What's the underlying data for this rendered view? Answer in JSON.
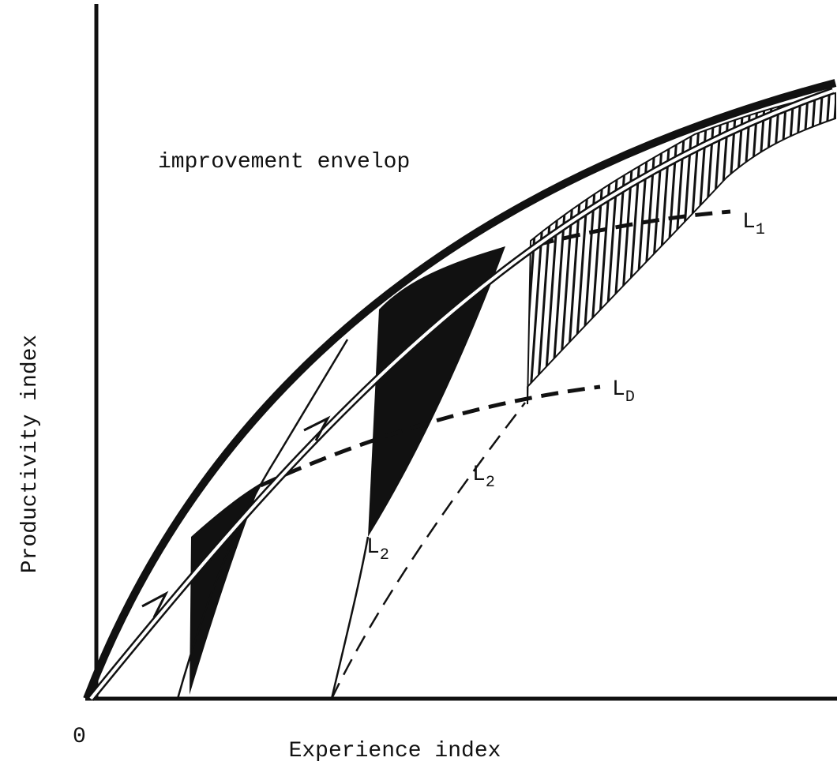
{
  "annotations": {
    "envelope": "improvement envelop",
    "origin": "0"
  },
  "axes": {
    "x_label": "Experience index",
    "y_label": "Productivity index"
  },
  "curve_labels": [
    {
      "letter": "L",
      "sub": "1"
    },
    {
      "letter": "L",
      "sub": "D"
    },
    {
      "letter": "L",
      "sub": "2"
    },
    {
      "letter": "L",
      "sub": "2"
    }
  ]
}
